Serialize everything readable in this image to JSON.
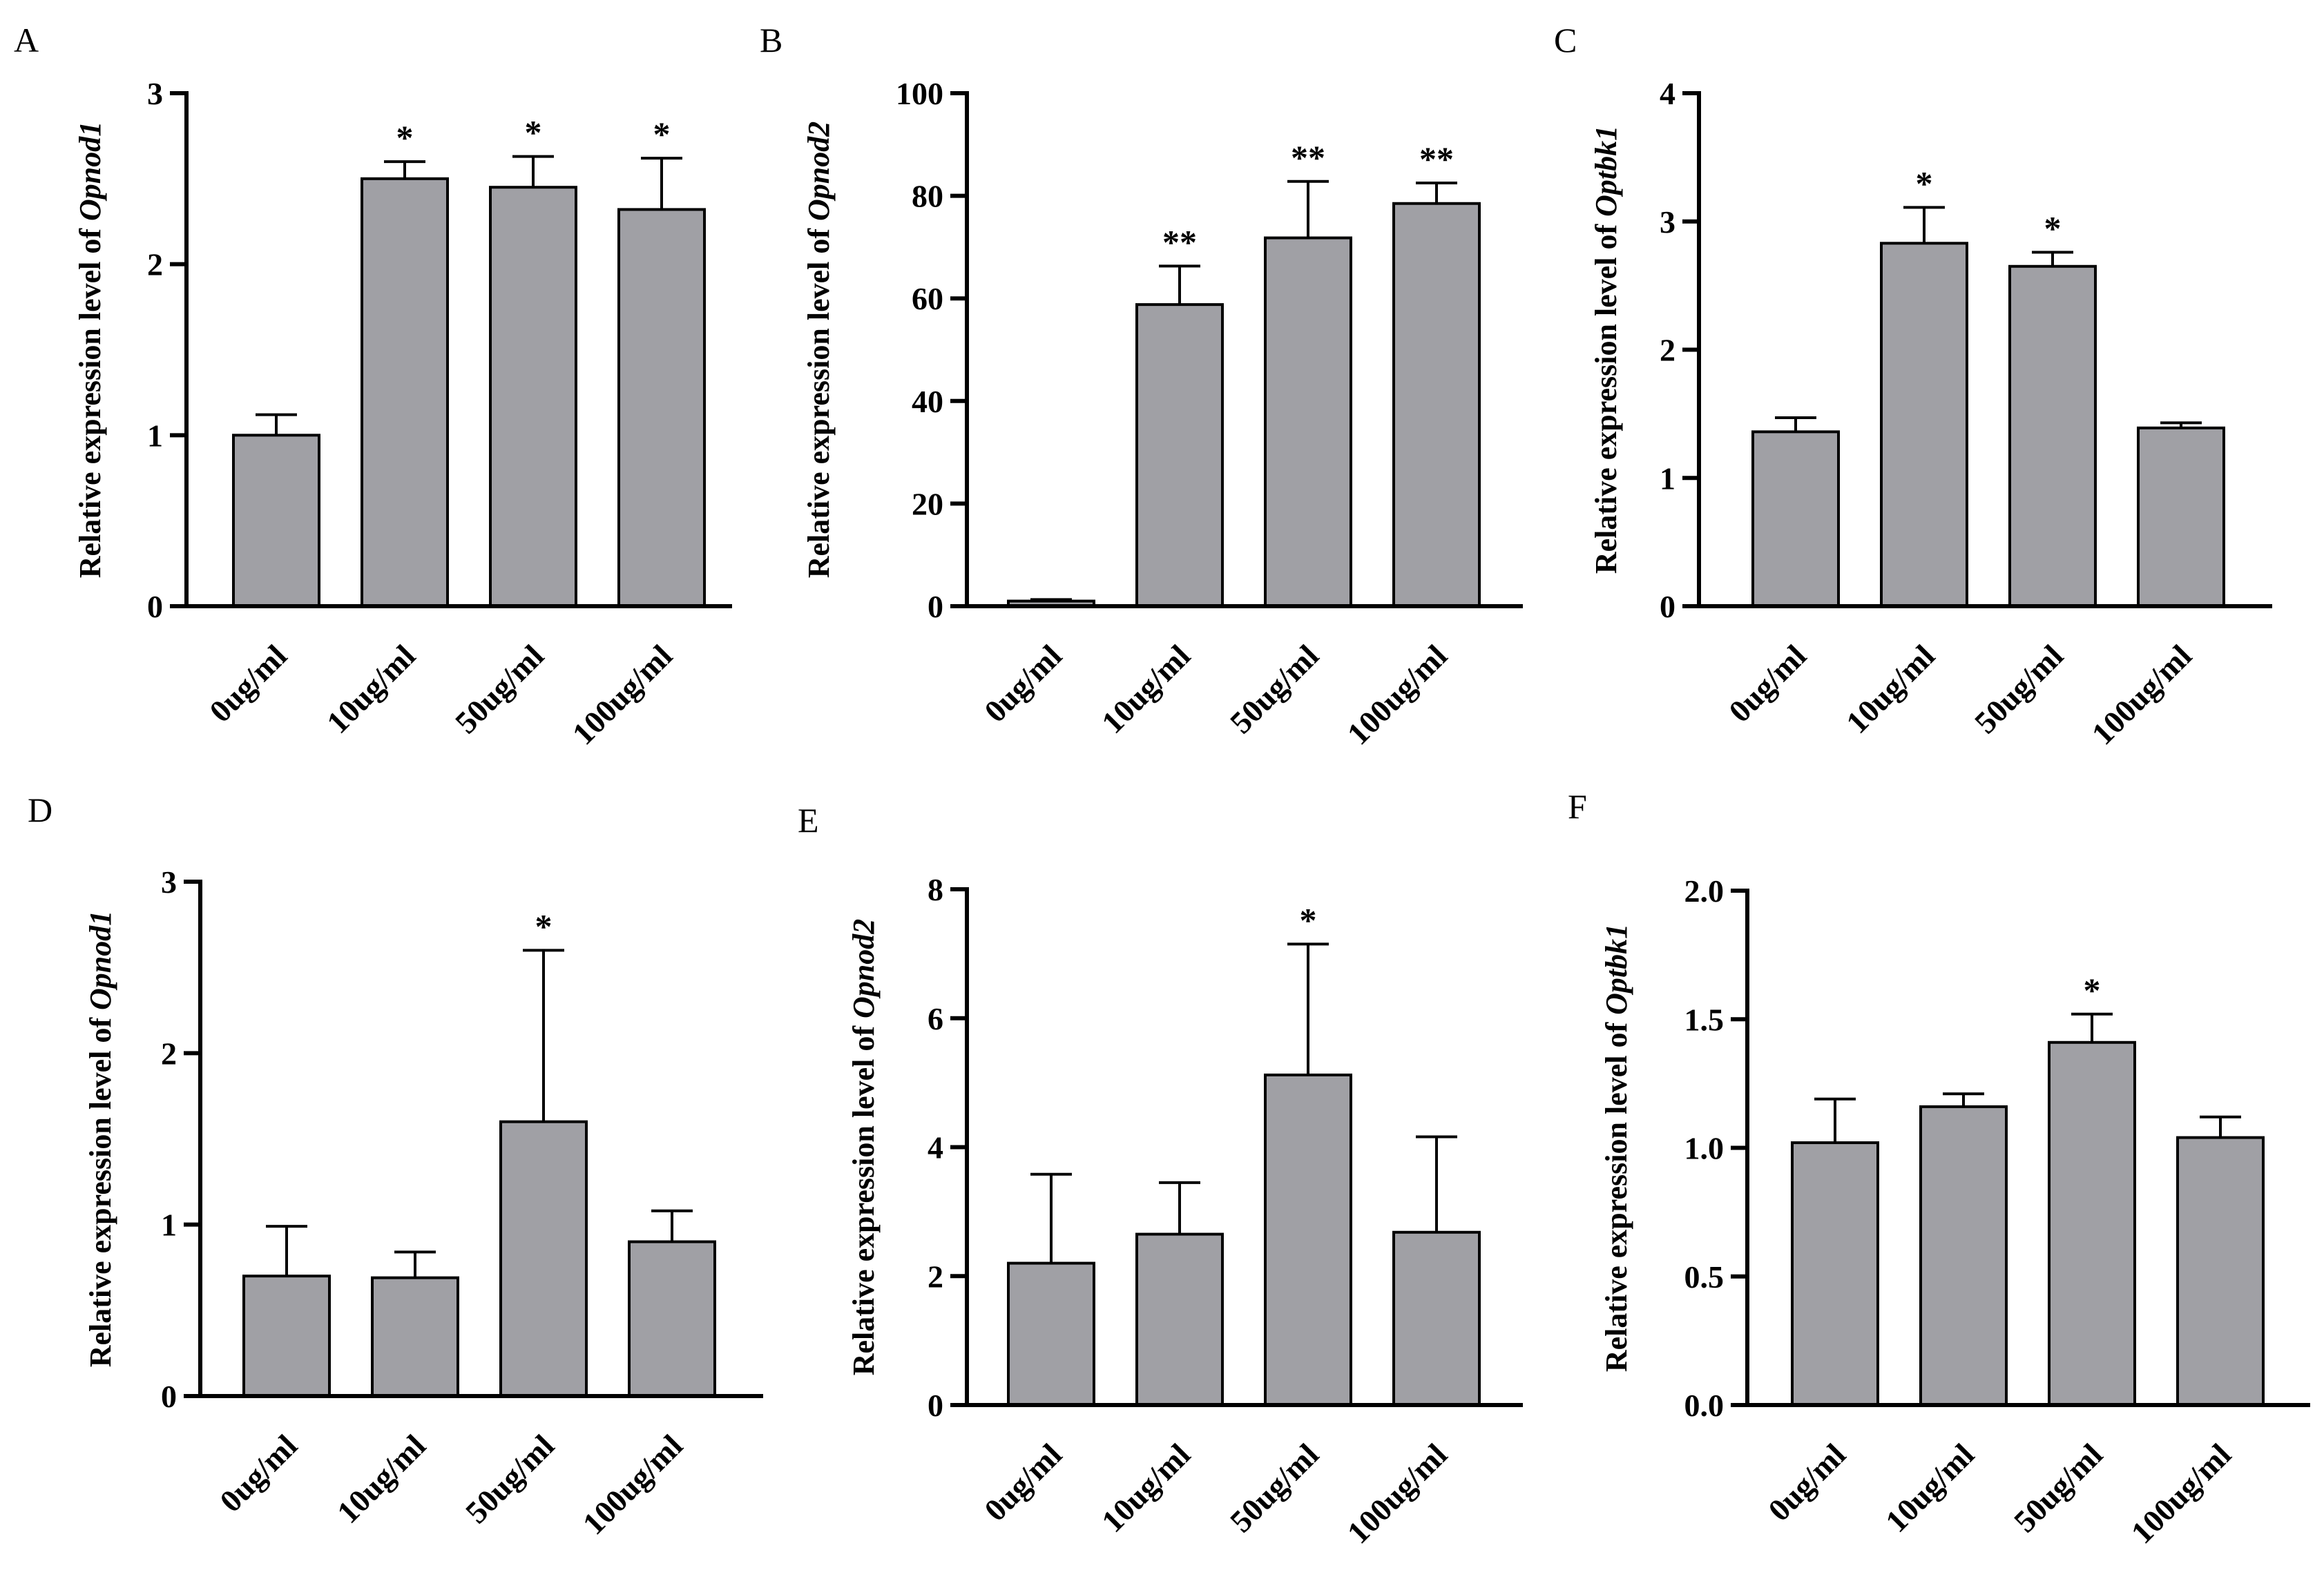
{
  "chart_data": [
    {
      "panel": "A",
      "type": "bar",
      "categories": [
        "0ug/ml",
        "10ug/ml",
        "50ug/ml",
        "100ug/ml"
      ],
      "values": [
        1.0,
        2.5,
        2.45,
        2.32
      ],
      "errors": [
        0.12,
        0.1,
        0.18,
        0.3
      ],
      "significance": [
        "",
        "*",
        "*",
        "*"
      ],
      "ylabel_prefix": "Relative expression level of ",
      "ylabel_gene": "Opnod1",
      "ylim": [
        0,
        3
      ],
      "yticks": [
        "0",
        "1",
        "2",
        "3"
      ]
    },
    {
      "panel": "B",
      "type": "bar",
      "categories": [
        "0ug/ml",
        "10ug/ml",
        "50ug/ml",
        "100ug/ml"
      ],
      "values": [
        1.0,
        58.8,
        71.8,
        78.5
      ],
      "errors": [
        0.3,
        7.5,
        11,
        4
      ],
      "significance": [
        "",
        "**",
        "**",
        "**"
      ],
      "ylabel_prefix": "Relative expression level of ",
      "ylabel_gene": "Opnod2",
      "ylim": [
        0,
        100
      ],
      "yticks": [
        "0",
        "20",
        "40",
        "60",
        "80",
        "100"
      ]
    },
    {
      "panel": "C",
      "type": "bar",
      "categories": [
        "0ug/ml",
        "10ug/ml",
        "50ug/ml",
        "100ug/ml"
      ],
      "values": [
        1.36,
        2.83,
        2.65,
        1.39
      ],
      "errors": [
        0.11,
        0.28,
        0.11,
        0.04
      ],
      "significance": [
        "",
        "*",
        "*",
        ""
      ],
      "ylabel_prefix": "Relative expression level of ",
      "ylabel_gene": "Optbk1",
      "ylim": [
        0,
        4
      ],
      "yticks": [
        "0",
        "1",
        "2",
        "3",
        "4"
      ]
    },
    {
      "panel": "D",
      "type": "bar",
      "categories": [
        "0ug/ml",
        "10ug/ml",
        "50ug/ml",
        "100ug/ml"
      ],
      "values": [
        0.7,
        0.69,
        1.6,
        0.9
      ],
      "errors": [
        0.29,
        0.15,
        1.0,
        0.18
      ],
      "significance": [
        "",
        "",
        "*",
        ""
      ],
      "ylabel_prefix": "Relative expression level of ",
      "ylabel_gene": "Opnod1",
      "ylim": [
        0,
        3
      ],
      "yticks": [
        "0",
        "1",
        "2",
        "3"
      ]
    },
    {
      "panel": "E",
      "type": "bar",
      "categories": [
        "0ug/ml",
        "10ug/ml",
        "50ug/ml",
        "100ug/ml"
      ],
      "values": [
        2.2,
        2.65,
        5.12,
        2.68
      ],
      "errors": [
        1.38,
        0.8,
        2.03,
        1.48
      ],
      "significance": [
        "",
        "",
        "*",
        ""
      ],
      "ylabel_prefix": "Relative expression level of ",
      "ylabel_gene": "Opnod2",
      "ylim": [
        0,
        8
      ],
      "yticks": [
        "0",
        "2",
        "4",
        "6",
        "8"
      ]
    },
    {
      "panel": "F",
      "type": "bar",
      "categories": [
        "0ug/ml",
        "10ug/ml",
        "50ug/ml",
        "100ug/ml"
      ],
      "values": [
        1.02,
        1.16,
        1.41,
        1.04
      ],
      "errors": [
        0.17,
        0.05,
        0.11,
        0.08
      ],
      "significance": [
        "",
        "",
        "*",
        ""
      ],
      "ylabel_prefix": "Relative expression level of ",
      "ylabel_gene": "Optbk1",
      "ylim": [
        0,
        2.0
      ],
      "yticks": [
        "0.0",
        "0.5",
        "1.0",
        "1.5",
        "2.0"
      ]
    }
  ]
}
